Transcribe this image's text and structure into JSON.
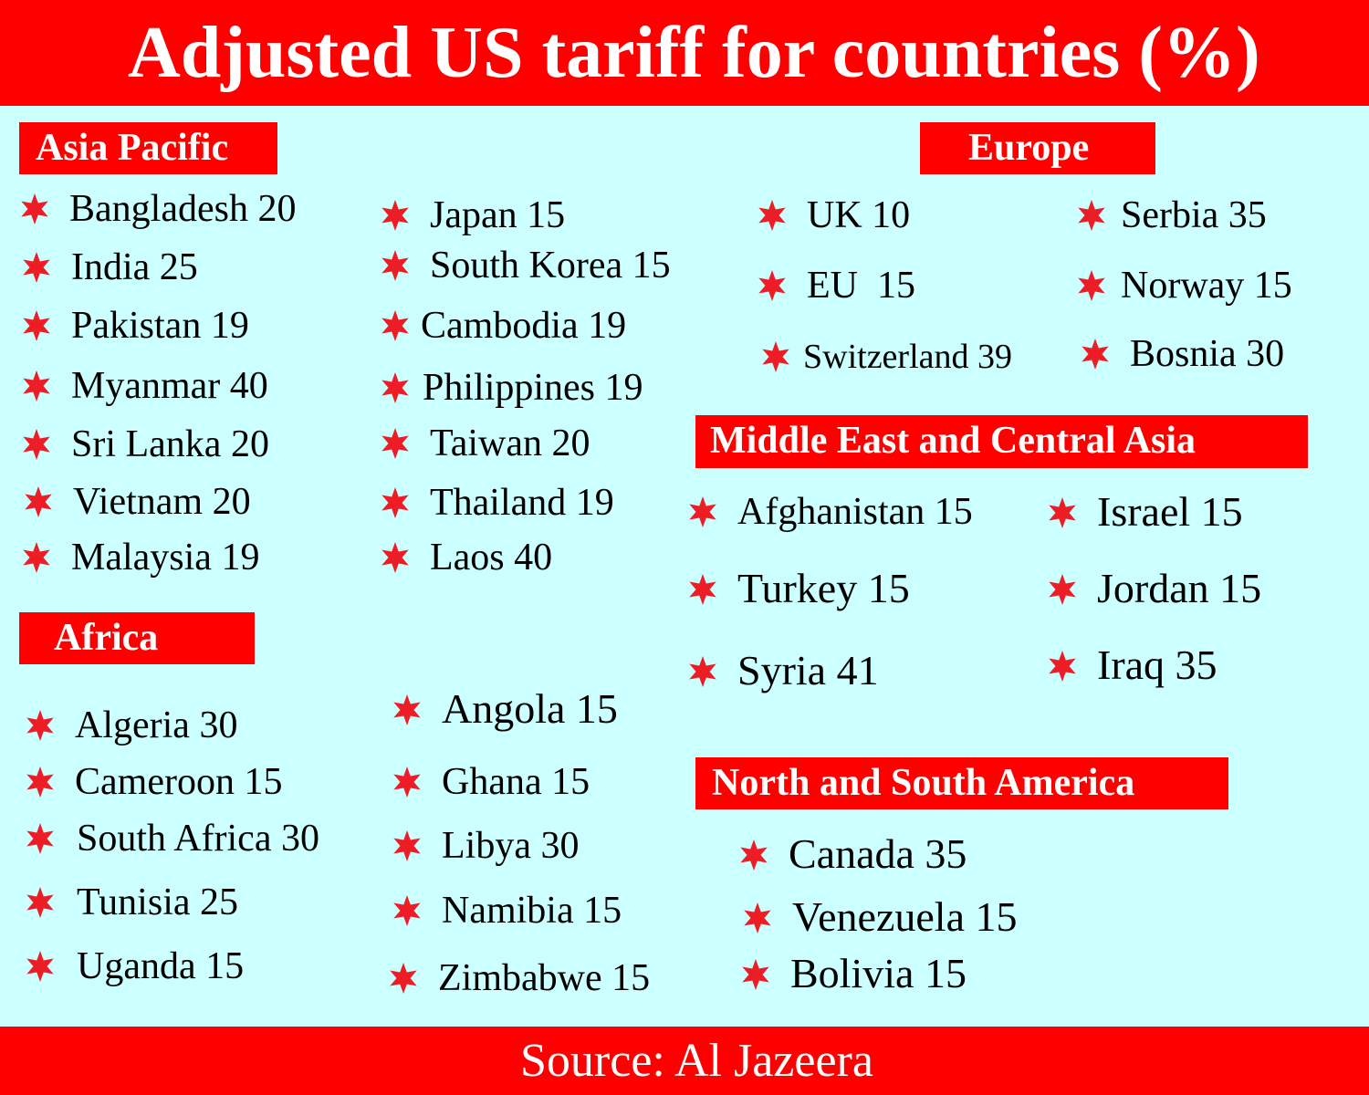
{
  "title": "Adjusted US tariff for countries (%)",
  "source": "Source: Al Jazeera",
  "colors": {
    "banner": "#ff0000",
    "background": "#ccffff",
    "star": "#ee1c25"
  },
  "bullet_icon": "red-star-icon",
  "regions": {
    "asia_pacific": {
      "label": "Asia Pacific",
      "items": [
        "Bangladesh 20",
        "India 25",
        "Pakistan 19",
        "Myanmar 40",
        "Sri Lanka 20",
        "Vietnam 20",
        "Malaysia 19",
        "Japan 15",
        "South Korea 15",
        "Cambodia 19",
        "Philippines 19",
        "Taiwan 20",
        "Thailand 19",
        "Laos 40"
      ]
    },
    "africa": {
      "label": "Africa",
      "items": [
        "Algeria 30",
        "Cameroon 15",
        "South Africa 30",
        "Tunisia 25",
        "Uganda 15",
        "Angola 15",
        "Ghana 15",
        "Libya 30",
        "Namibia 15",
        "Zimbabwe 15"
      ]
    },
    "europe": {
      "label": "Europe",
      "items": [
        "UK 10",
        "EU  15",
        "Switzerland 39",
        "Serbia 35",
        "Norway 15",
        "Bosnia 30"
      ]
    },
    "middle_east": {
      "label": "Middle East and Central Asia",
      "items": [
        "Afghanistan 15",
        "Turkey 15",
        "Syria 41",
        "Israel 15",
        "Jordan 15",
        "Iraq 35"
      ]
    },
    "americas": {
      "label": "North and South America",
      "items": [
        "Canada 35",
        "Venezuela 15",
        "Bolivia 15"
      ]
    }
  }
}
